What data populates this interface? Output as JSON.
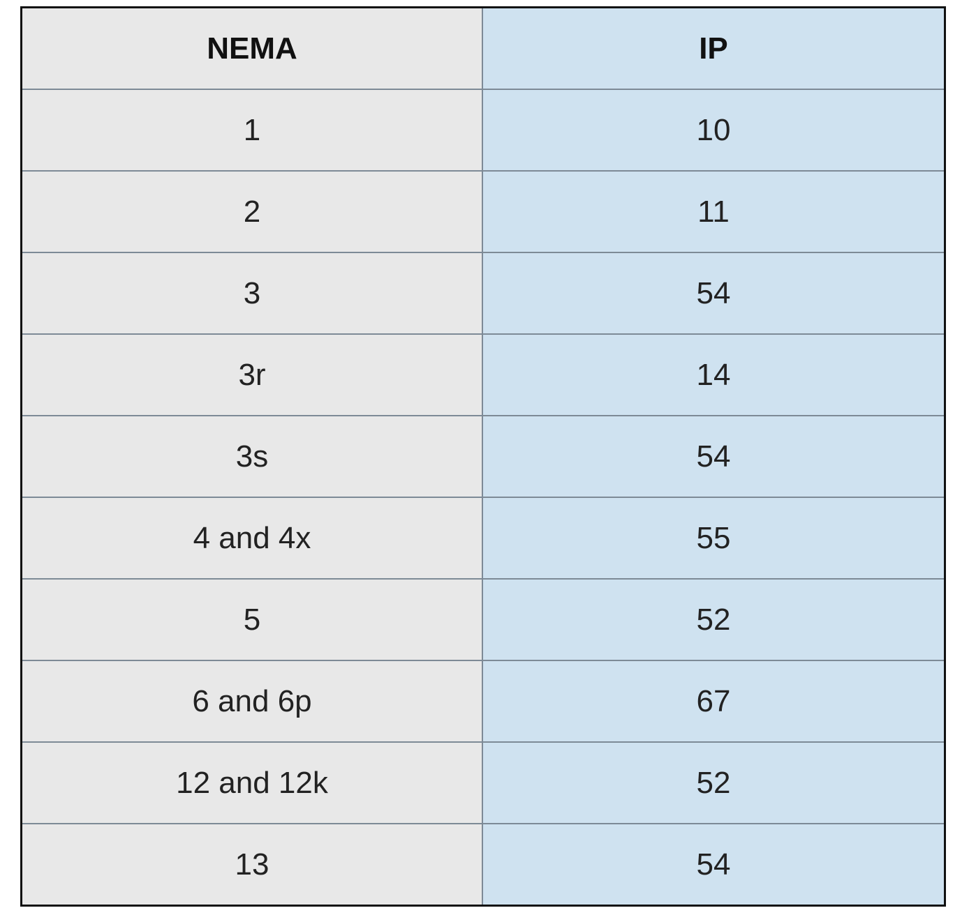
{
  "table": {
    "header": [
      "NEMA",
      "IP"
    ],
    "rows": [
      [
        "1",
        10
      ],
      [
        "2",
        11
      ],
      [
        "3",
        54
      ],
      [
        "3r",
        14
      ],
      [
        "3s",
        54
      ],
      [
        "4 and 4x",
        55
      ],
      [
        "5",
        52
      ],
      [
        "6 and 6p",
        67
      ],
      [
        "12 and 12k",
        52
      ],
      [
        "13",
        54
      ]
    ]
  }
}
